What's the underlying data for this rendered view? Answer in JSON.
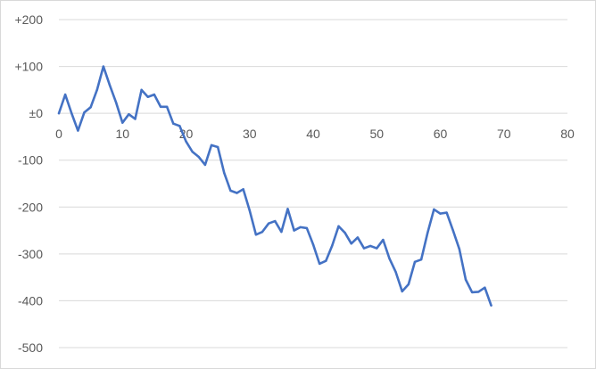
{
  "chart_data": {
    "type": "line",
    "title": "",
    "xlabel": "",
    "ylabel": "",
    "xlim": [
      0,
      80
    ],
    "ylim": [
      -500,
      200
    ],
    "grid": true,
    "legend": "none",
    "x_ticks": [
      0,
      10,
      20,
      30,
      40,
      50,
      60,
      70,
      80
    ],
    "x_tick_labels": [
      "0",
      "10",
      "20",
      "30",
      "40",
      "50",
      "60",
      "70",
      "80"
    ],
    "y_ticks": [
      200,
      100,
      0,
      -100,
      -200,
      -300,
      -400,
      -500
    ],
    "y_tick_labels": [
      "+200",
      "+100",
      "±0",
      "-100",
      "-200",
      "-300",
      "-400",
      "-500"
    ],
    "series": [
      {
        "color": "#4472c4",
        "x": [
          0,
          1,
          2,
          3,
          4,
          5,
          6,
          7,
          8,
          9,
          10,
          11,
          12,
          13,
          14,
          15,
          16,
          17,
          18,
          19,
          20,
          21,
          22,
          23,
          24,
          25,
          26,
          27,
          28,
          29,
          30,
          31,
          32,
          33,
          34,
          35,
          36,
          37,
          38,
          39,
          40,
          41,
          42,
          43,
          44,
          45,
          46,
          47,
          48,
          49,
          50,
          51,
          52,
          53,
          54,
          55,
          56,
          57,
          58,
          59,
          60,
          61,
          62,
          63,
          64,
          65,
          66,
          67,
          68
        ],
        "values": [
          0,
          40,
          0,
          -37,
          2,
          13,
          50,
          100,
          60,
          23,
          -20,
          -2,
          -12,
          50,
          35,
          40,
          14,
          14,
          -22,
          -27,
          -60,
          -82,
          -93,
          -110,
          -68,
          -72,
          -127,
          -165,
          -170,
          -162,
          -207,
          -259,
          -253,
          -235,
          -230,
          -253,
          -204,
          -250,
          -243,
          -245,
          -280,
          -321,
          -315,
          -282,
          -241,
          -255,
          -278,
          -265,
          -288,
          -283,
          -288,
          -270,
          -310,
          -339,
          -380,
          -365,
          -317,
          -312,
          -255,
          -205,
          -214,
          -212,
          -250,
          -290,
          -355,
          -382,
          -381,
          -372,
          -410
        ]
      }
    ]
  }
}
